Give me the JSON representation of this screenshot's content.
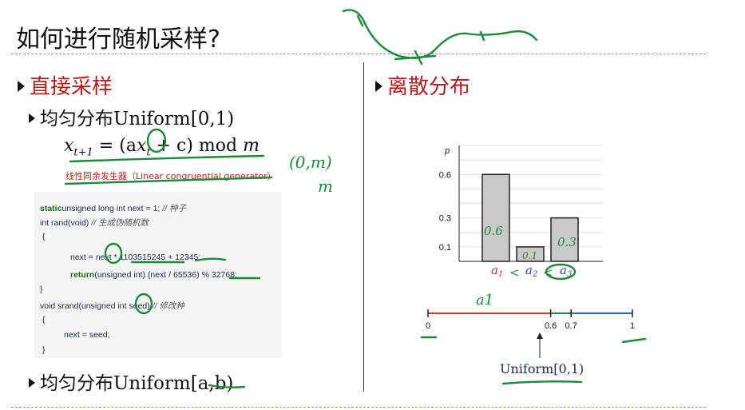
{
  "title": "如何进行随机采样?",
  "left": {
    "heading": "直接采样",
    "uniform_01": "均匀分布Uniform[0,1)",
    "formula": {
      "lhs": "x",
      "lhs_sub": "t+1",
      "eq": " = (a",
      "x": "x",
      "x_sub": "t",
      "rest": " + c) mod ",
      "m": "m"
    },
    "lcg_note": "线性同余发生器（Linear congruential generator）",
    "code": [
      {
        "kw": "static",
        "text": " unsigned long int next = 1; ",
        "cm": "// 种子"
      },
      {
        "kw": "",
        "text": "int rand(void) ",
        "cm": "// 生成伪随机数"
      },
      {
        "kw": "",
        "text": "{",
        "cm": ""
      },
      {
        "kw": "",
        "text": "        next = next * 1103515245 + 12345;",
        "cm": ""
      },
      {
        "kw": "return",
        "text": " (unsigned int) (next / 65536) % 32768;",
        "cm": ""
      },
      {
        "kw": "",
        "text": "}",
        "cm": ""
      },
      {
        "kw": "",
        "text": "void srand(unsigned int seed) ",
        "cm": "// 修改种"
      },
      {
        "kw": "",
        "text": "{",
        "cm": ""
      },
      {
        "kw": "",
        "text": "        next = seed;",
        "cm": ""
      },
      {
        "kw": "",
        "text": "}",
        "cm": ""
      }
    ],
    "uniform_ab": "均匀分布Uniform[a,b)"
  },
  "right": {
    "heading": "离散分布",
    "number_line": {
      "ticks": [
        "0",
        "0.6",
        "0.7",
        "1"
      ],
      "caption": "Uniform[0,1)"
    }
  },
  "annotations": {
    "handwritten_note_1": "(0,m)",
    "handwritten_note_2": "m",
    "bar_notes": [
      "0.6",
      "0.1",
      "0.3"
    ],
    "a1_note": "a1"
  },
  "chart_data": {
    "type": "bar",
    "categories": [
      "a1",
      "a2",
      "a3"
    ],
    "category_labels": [
      {
        "base": "a",
        "sub": "1"
      },
      {
        "base": "a",
        "sub": "2"
      },
      {
        "base": "a",
        "sub": "3"
      }
    ],
    "values": [
      0.6,
      0.1,
      0.3
    ],
    "ylabel": "p",
    "yticks": [
      0.1,
      0.3,
      0.6
    ],
    "ytick_labels": [
      "0.1",
      "0.3",
      "0.6"
    ],
    "ylim": [
      0,
      0.8
    ],
    "grid": true,
    "bar_fill": "#c9c9c9",
    "bar_stroke": "#222222"
  },
  "colors": {
    "heading_red": "#b11e1e",
    "ink_green": "#1d8a3a",
    "line_red": "#d23a2a",
    "line_blue": "#2b63b0"
  }
}
